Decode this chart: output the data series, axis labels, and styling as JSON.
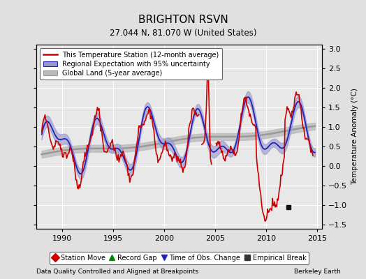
{
  "title": "BRIGHTON RSVN",
  "subtitle": "27.044 N, 81.070 W (United States)",
  "xlabel_bottom": "Data Quality Controlled and Aligned at Breakpoints",
  "xlabel_right": "Berkeley Earth",
  "ylabel": "Temperature Anomaly (°C)",
  "xlim": [
    1987.5,
    2015.5
  ],
  "ylim": [
    -1.6,
    3.1
  ],
  "yticks": [
    -1.5,
    -1.0,
    -0.5,
    0.0,
    0.5,
    1.0,
    1.5,
    2.0,
    2.5,
    3.0
  ],
  "xticks": [
    1990,
    1995,
    2000,
    2005,
    2010,
    2015
  ],
  "bg_color": "#e0e0e0",
  "plot_bg_color": "#e8e8e8",
  "red_line_color": "#cc0000",
  "blue_line_color": "#2222bb",
  "blue_fill_color": "#9999cc",
  "gray_line_color": "#999999",
  "gray_fill_color": "#bbbbbb",
  "legend_labels": [
    "This Temperature Station (12-month average)",
    "Regional Expectation with 95% uncertainty",
    "Global Land (5-year average)"
  ],
  "bottom_legend": [
    "Station Move",
    "Record Gap",
    "Time of Obs. Change",
    "Empirical Break"
  ],
  "bottom_legend_colors": [
    "#cc0000",
    "#008800",
    "#2222bb",
    "#333333"
  ],
  "bottom_legend_markers": [
    "D",
    "^",
    "v",
    "s"
  ],
  "empirical_break_x": 2012.2,
  "empirical_break_y": -1.05,
  "title_fontsize": 11,
  "axis_fontsize": 8,
  "label_fontsize": 7.5
}
